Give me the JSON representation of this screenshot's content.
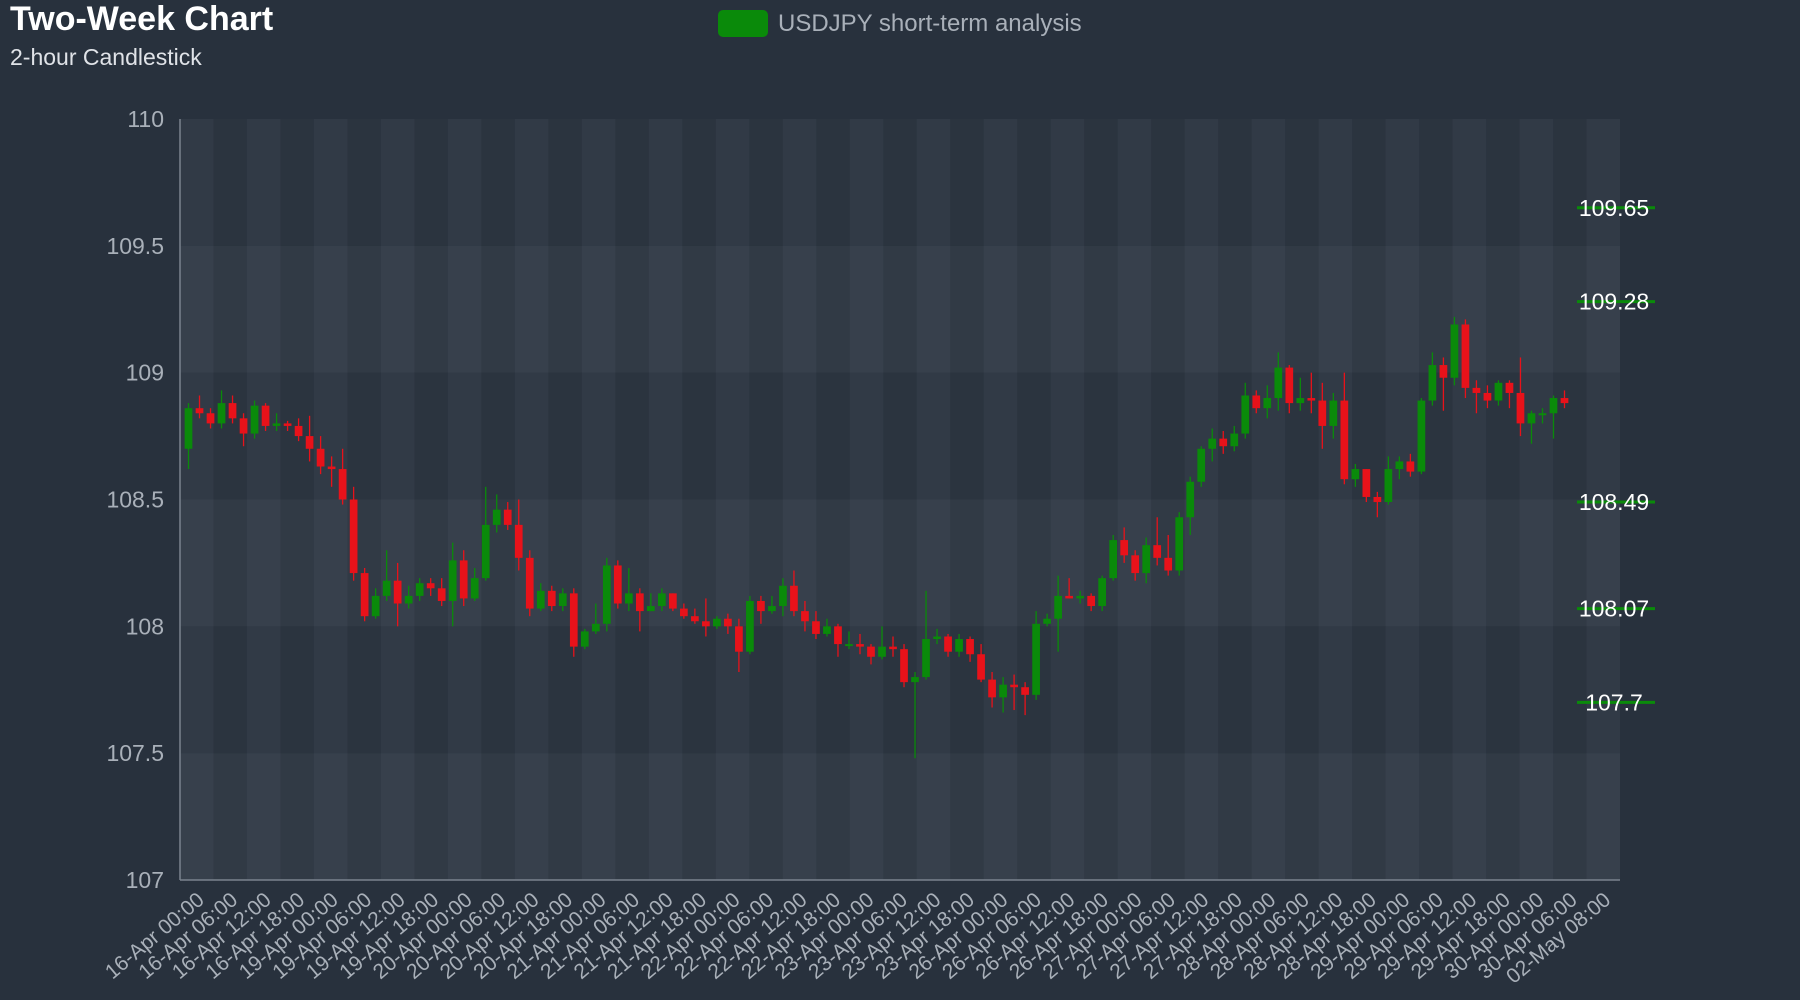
{
  "chart_data": {
    "type": "candlestick",
    "title": "Two-Week Chart",
    "subtitle": "2-hour Candlestick",
    "legend": {
      "label": "USDJPY short-term analysis",
      "color": "#0a8a0a",
      "placement": "top-center"
    },
    "colors": {
      "up": "#0a8a0a",
      "down": "#e8121a",
      "level_line": "#0a8a0a",
      "background": "#28313d"
    },
    "grid": true,
    "ylim": [
      107,
      110
    ],
    "yticks": [
      "107",
      "107.5",
      "108",
      "108.5",
      "109",
      "109.5",
      "110"
    ],
    "x_labels": [
      "16-Apr 00:00",
      "16-Apr 06:00",
      "16-Apr 12:00",
      "16-Apr 18:00",
      "19-Apr 00:00",
      "19-Apr 06:00",
      "19-Apr 12:00",
      "19-Apr 18:00",
      "20-Apr 00:00",
      "20-Apr 06:00",
      "20-Apr 12:00",
      "20-Apr 18:00",
      "21-Apr 00:00",
      "21-Apr 06:00",
      "21-Apr 12:00",
      "21-Apr 18:00",
      "22-Apr 00:00",
      "22-Apr 06:00",
      "22-Apr 12:00",
      "22-Apr 18:00",
      "23-Apr 00:00",
      "23-Apr 06:00",
      "23-Apr 12:00",
      "23-Apr 18:00",
      "26-Apr 00:00",
      "26-Apr 06:00",
      "26-Apr 12:00",
      "26-Apr 18:00",
      "27-Apr 00:00",
      "27-Apr 06:00",
      "27-Apr 12:00",
      "27-Apr 18:00",
      "28-Apr 00:00",
      "28-Apr 06:00",
      "28-Apr 12:00",
      "28-Apr 18:00",
      "29-Apr 00:00",
      "29-Apr 06:00",
      "29-Apr 12:00",
      "29-Apr 18:00",
      "30-Apr 00:00",
      "30-Apr 06:00",
      "02-May 08:00"
    ],
    "levels": [
      {
        "label": "109.65",
        "value": 109.65
      },
      {
        "label": "109.28",
        "value": 109.28
      },
      {
        "label": "108.49",
        "value": 108.49
      },
      {
        "label": "108.07",
        "value": 108.07
      },
      {
        "label": "107.7",
        "value": 107.7
      }
    ],
    "candles": [
      [
        108.7,
        108.86,
        108.62,
        108.88
      ],
      [
        108.86,
        108.84,
        108.82,
        108.91
      ],
      [
        108.84,
        108.8,
        108.78,
        108.86
      ],
      [
        108.8,
        108.88,
        108.78,
        108.93
      ],
      [
        108.88,
        108.82,
        108.8,
        108.91
      ],
      [
        108.82,
        108.76,
        108.71,
        108.84
      ],
      [
        108.76,
        108.87,
        108.74,
        108.89
      ],
      [
        108.87,
        108.79,
        108.77,
        108.88
      ],
      [
        108.79,
        108.8,
        108.77,
        108.84
      ],
      [
        108.8,
        108.79,
        108.77,
        108.81
      ],
      [
        108.79,
        108.75,
        108.73,
        108.82
      ],
      [
        108.75,
        108.7,
        108.65,
        108.83
      ],
      [
        108.7,
        108.63,
        108.6,
        108.75
      ],
      [
        108.63,
        108.62,
        108.55,
        108.67
      ],
      [
        108.62,
        108.5,
        108.48,
        108.7
      ],
      [
        108.5,
        108.21,
        108.18,
        108.55
      ],
      [
        108.21,
        108.04,
        108.02,
        108.23
      ],
      [
        108.04,
        108.12,
        108.03,
        108.15
      ],
      [
        108.12,
        108.18,
        108.1,
        108.3
      ],
      [
        108.18,
        108.09,
        108.0,
        108.25
      ],
      [
        108.09,
        108.12,
        108.07,
        108.16
      ],
      [
        108.12,
        108.17,
        108.1,
        108.19
      ],
      [
        108.17,
        108.15,
        108.12,
        108.19
      ],
      [
        108.15,
        108.1,
        108.08,
        108.19
      ],
      [
        108.1,
        108.26,
        108.0,
        108.33
      ],
      [
        108.26,
        108.11,
        108.08,
        108.3
      ],
      [
        108.11,
        108.19,
        108.1,
        108.23
      ],
      [
        108.19,
        108.4,
        108.18,
        108.55
      ],
      [
        108.4,
        108.46,
        108.37,
        108.52
      ],
      [
        108.46,
        108.4,
        108.38,
        108.49
      ],
      [
        108.4,
        108.27,
        108.22,
        108.5
      ],
      [
        108.27,
        108.07,
        108.04,
        108.3
      ],
      [
        108.07,
        108.14,
        108.06,
        108.17
      ],
      [
        108.14,
        108.08,
        108.06,
        108.16
      ],
      [
        108.08,
        108.13,
        108.06,
        108.15
      ],
      [
        108.13,
        107.92,
        107.88,
        108.15
      ],
      [
        107.92,
        107.98,
        107.91,
        107.99
      ],
      [
        107.98,
        108.01,
        107.97,
        108.09
      ],
      [
        108.01,
        108.24,
        107.98,
        108.27
      ],
      [
        108.24,
        108.09,
        108.07,
        108.26
      ],
      [
        108.09,
        108.13,
        108.06,
        108.23
      ],
      [
        108.13,
        108.06,
        107.98,
        108.15
      ],
      [
        108.06,
        108.08,
        108.06,
        108.13
      ],
      [
        108.08,
        108.13,
        108.06,
        108.15
      ],
      [
        108.13,
        108.07,
        108.06,
        108.13
      ],
      [
        108.07,
        108.04,
        108.03,
        108.09
      ],
      [
        108.04,
        108.02,
        108.01,
        108.07
      ],
      [
        108.02,
        108.0,
        107.96,
        108.11
      ],
      [
        108.0,
        108.03,
        107.99,
        108.04
      ],
      [
        108.03,
        108.0,
        107.97,
        108.05
      ],
      [
        108.0,
        107.9,
        107.82,
        108.03
      ],
      [
        107.9,
        108.1,
        107.89,
        108.12
      ],
      [
        108.1,
        108.06,
        108.01,
        108.12
      ],
      [
        108.06,
        108.08,
        108.05,
        108.12
      ],
      [
        108.08,
        108.16,
        108.04,
        108.19
      ],
      [
        108.16,
        108.06,
        108.04,
        108.22
      ],
      [
        108.06,
        108.02,
        107.98,
        108.1
      ],
      [
        108.02,
        107.97,
        107.95,
        108.06
      ],
      [
        107.97,
        108.0,
        107.96,
        108.03
      ],
      [
        108.0,
        107.93,
        107.88,
        108.01
      ],
      [
        107.93,
        107.93,
        107.91,
        107.98
      ],
      [
        107.93,
        107.92,
        107.89,
        107.97
      ],
      [
        107.92,
        107.88,
        107.85,
        107.93
      ],
      [
        107.88,
        107.92,
        107.87,
        108.0
      ],
      [
        107.92,
        107.91,
        107.88,
        107.96
      ],
      [
        107.91,
        107.78,
        107.76,
        107.93
      ],
      [
        107.78,
        107.8,
        107.48,
        107.82
      ],
      [
        107.8,
        107.95,
        107.79,
        108.14
      ],
      [
        107.95,
        107.96,
        107.93,
        107.99
      ],
      [
        107.96,
        107.9,
        107.88,
        107.97
      ],
      [
        107.9,
        107.95,
        107.88,
        107.97
      ],
      [
        107.95,
        107.89,
        107.86,
        107.96
      ],
      [
        107.89,
        107.79,
        107.78,
        107.93
      ],
      [
        107.79,
        107.72,
        107.68,
        107.82
      ],
      [
        107.72,
        107.77,
        107.66,
        107.8
      ],
      [
        107.77,
        107.76,
        107.67,
        107.81
      ],
      [
        107.76,
        107.73,
        107.65,
        107.78
      ],
      [
        107.73,
        108.01,
        107.71,
        108.06
      ],
      [
        108.01,
        108.03,
        108.0,
        108.05
      ],
      [
        108.03,
        108.12,
        107.9,
        108.2
      ],
      [
        108.12,
        108.11,
        108.11,
        108.19
      ],
      [
        108.11,
        108.12,
        108.09,
        108.14
      ],
      [
        108.12,
        108.08,
        108.06,
        108.13
      ],
      [
        108.08,
        108.19,
        108.06,
        108.2
      ],
      [
        108.19,
        108.34,
        108.18,
        108.36
      ],
      [
        108.34,
        108.28,
        108.25,
        108.39
      ],
      [
        108.28,
        108.21,
        108.18,
        108.3
      ],
      [
        108.21,
        108.32,
        108.17,
        108.35
      ],
      [
        108.32,
        108.27,
        108.24,
        108.43
      ],
      [
        108.27,
        108.22,
        108.2,
        108.36
      ],
      [
        108.22,
        108.43,
        108.2,
        108.45
      ],
      [
        108.43,
        108.57,
        108.36,
        108.59
      ],
      [
        108.57,
        108.7,
        108.55,
        108.71
      ],
      [
        108.7,
        108.74,
        108.65,
        108.78
      ],
      [
        108.74,
        108.71,
        108.68,
        108.77
      ],
      [
        108.71,
        108.76,
        108.69,
        108.79
      ],
      [
        108.76,
        108.91,
        108.74,
        108.96
      ],
      [
        108.91,
        108.86,
        108.84,
        108.93
      ],
      [
        108.86,
        108.9,
        108.82,
        108.95
      ],
      [
        108.9,
        109.02,
        108.85,
        109.08
      ],
      [
        109.02,
        108.88,
        108.84,
        109.03
      ],
      [
        108.88,
        108.9,
        108.85,
        108.98
      ],
      [
        108.9,
        108.89,
        108.84,
        109.0
      ],
      [
        108.89,
        108.79,
        108.7,
        108.96
      ],
      [
        108.79,
        108.89,
        108.74,
        108.92
      ],
      [
        108.89,
        108.58,
        108.56,
        109.0
      ],
      [
        108.58,
        108.62,
        108.55,
        108.64
      ],
      [
        108.62,
        108.51,
        108.49,
        108.62
      ],
      [
        108.51,
        108.49,
        108.43,
        108.53
      ],
      [
        108.49,
        108.62,
        108.48,
        108.67
      ],
      [
        108.62,
        108.65,
        108.58,
        108.67
      ],
      [
        108.65,
        108.61,
        108.59,
        108.68
      ],
      [
        108.61,
        108.89,
        108.6,
        108.9
      ],
      [
        108.89,
        109.03,
        108.87,
        109.08
      ],
      [
        109.03,
        108.98,
        108.85,
        109.06
      ],
      [
        108.98,
        109.19,
        108.95,
        109.22
      ],
      [
        109.19,
        108.94,
        108.9,
        109.21
      ],
      [
        108.94,
        108.92,
        108.84,
        108.97
      ],
      [
        108.92,
        108.89,
        108.86,
        108.95
      ],
      [
        108.89,
        108.96,
        108.87,
        108.97
      ],
      [
        108.96,
        108.92,
        108.86,
        108.97
      ],
      [
        108.92,
        108.8,
        108.75,
        109.06
      ],
      [
        108.8,
        108.84,
        108.72,
        108.85
      ],
      [
        108.84,
        108.84,
        108.8,
        108.86
      ],
      [
        108.84,
        108.9,
        108.74,
        108.91
      ],
      [
        108.9,
        108.88,
        108.86,
        108.93
      ]
    ]
  }
}
